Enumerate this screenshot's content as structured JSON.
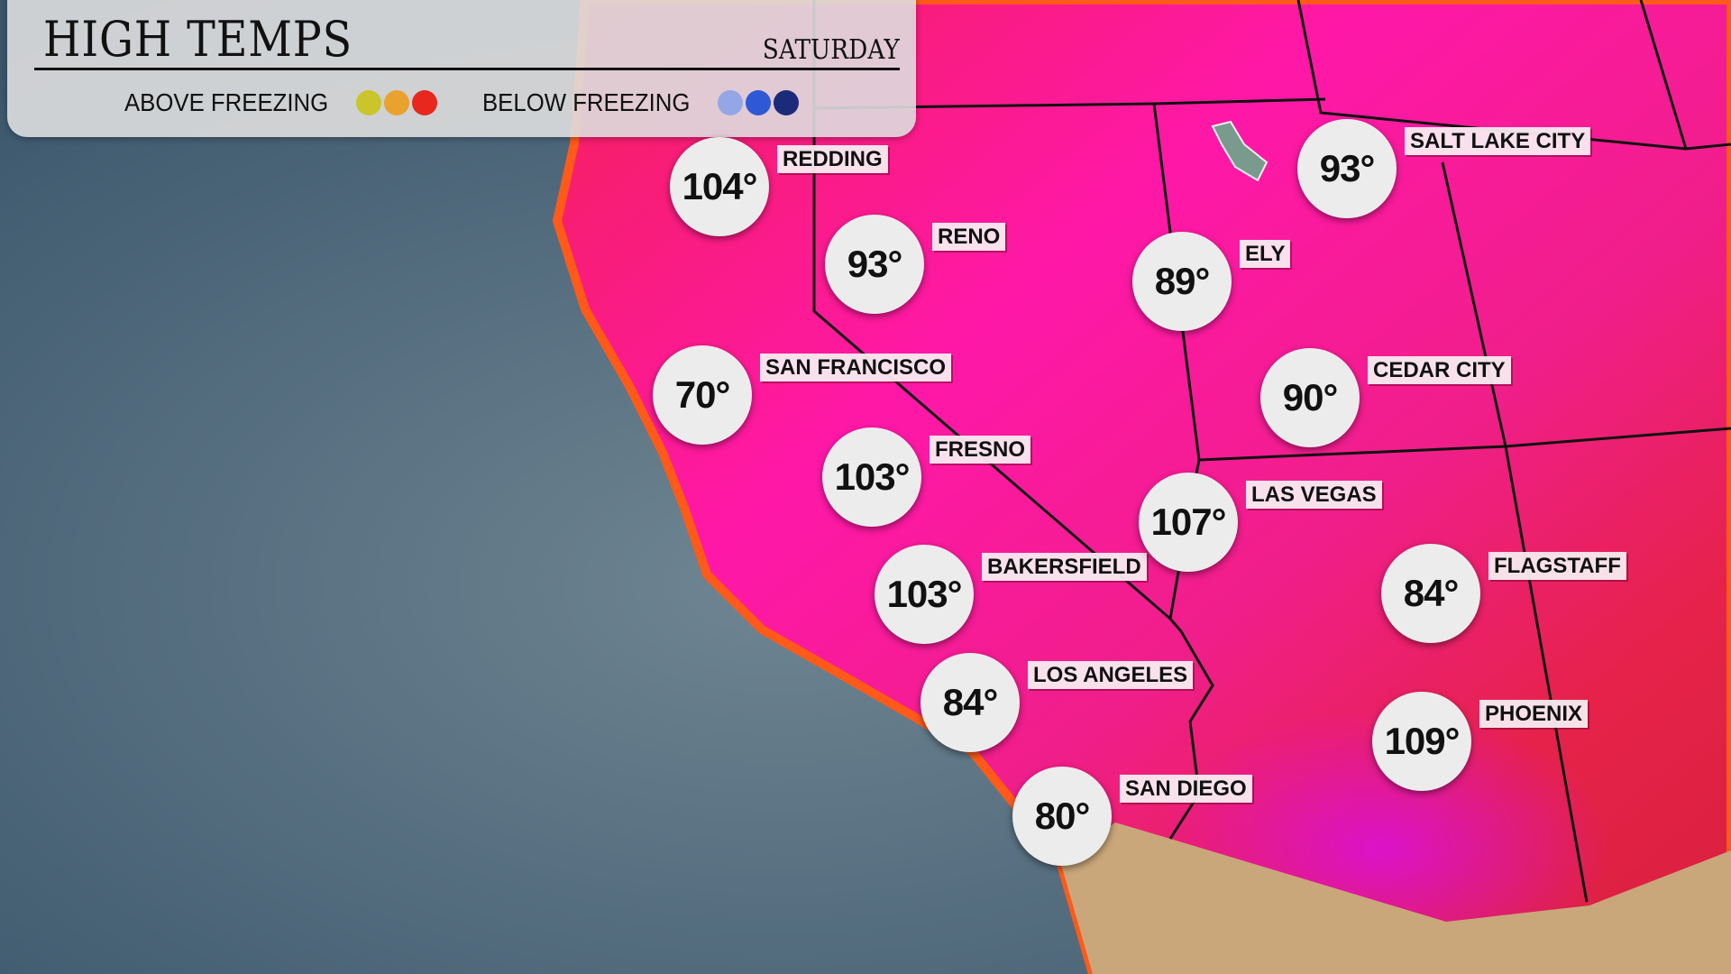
{
  "header": {
    "title": "HIGH TEMPS",
    "day": "SATURDAY",
    "legend": {
      "above_label": "ABOVE FREEZING",
      "above_colors": [
        "#c9c52a",
        "#e9a22e",
        "#e8281e"
      ],
      "below_label": "BELOW FREEZING",
      "below_colors": [
        "#94a6e6",
        "#2e58d6",
        "#1c2a7a"
      ]
    }
  },
  "colors": {
    "ocean": "#4a6478",
    "land_hot": "#ff1fa0",
    "land_warm": "#f0204a",
    "mexico": "#c9a77a"
  },
  "cities": [
    {
      "name": "REDDING",
      "temp": "104°"
    },
    {
      "name": "RENO",
      "temp": "93°"
    },
    {
      "name": "SAN FRANCISCO",
      "temp": "70°"
    },
    {
      "name": "FRESNO",
      "temp": "103°"
    },
    {
      "name": "BAKERSFIELD",
      "temp": "103°"
    },
    {
      "name": "LOS ANGELES",
      "temp": "84°"
    },
    {
      "name": "SAN DIEGO",
      "temp": "80°"
    },
    {
      "name": "ELY",
      "temp": "89°"
    },
    {
      "name": "SALT LAKE CITY",
      "temp": "93°"
    },
    {
      "name": "CEDAR CITY",
      "temp": "90°"
    },
    {
      "name": "LAS VEGAS",
      "temp": "107°"
    },
    {
      "name": "FLAGSTAFF",
      "temp": "84°"
    },
    {
      "name": "PHOENIX",
      "temp": "109°"
    }
  ]
}
